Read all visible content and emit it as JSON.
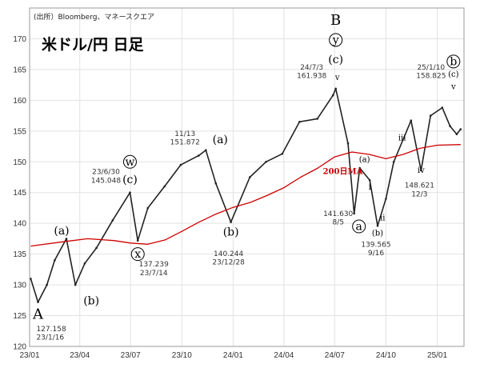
{
  "chart_data": {
    "type": "line",
    "title": "米ドル/円 日足",
    "source": "(出所）Bloomberg、マネースクエア",
    "ylim": [
      120,
      175
    ],
    "y_ticks": [
      120,
      125,
      130,
      135,
      140,
      145,
      150,
      155,
      160,
      165,
      170
    ],
    "x_ticks": [
      "23/01",
      "23/04",
      "23/07",
      "23/10",
      "24/01",
      "24/04",
      "24/07",
      "24/10",
      "25/01"
    ],
    "grid": true,
    "series": [
      {
        "name": "price",
        "color": "#222222",
        "points": [
          [
            "2023-01-03",
            131.0
          ],
          [
            "2023-01-16",
            127.2
          ],
          [
            "2023-02-01",
            130.0
          ],
          [
            "2023-02-15",
            134.0
          ],
          [
            "2023-03-08",
            137.5
          ],
          [
            "2023-03-24",
            130.0
          ],
          [
            "2023-04-10",
            133.5
          ],
          [
            "2023-05-01",
            136.0
          ],
          [
            "2023-05-30",
            140.5
          ],
          [
            "2023-06-30",
            145.0
          ],
          [
            "2023-07-14",
            137.2
          ],
          [
            "2023-08-01",
            142.5
          ],
          [
            "2023-08-31",
            146.0
          ],
          [
            "2023-09-29",
            149.5
          ],
          [
            "2023-10-31",
            151.0
          ],
          [
            "2023-11-13",
            151.9
          ],
          [
            "2023-12-01",
            146.5
          ],
          [
            "2023-12-28",
            140.2
          ],
          [
            "2024-01-31",
            147.5
          ],
          [
            "2024-02-29",
            150.0
          ],
          [
            "2024-03-29",
            151.3
          ],
          [
            "2024-04-29",
            156.5
          ],
          [
            "2024-05-31",
            157.0
          ],
          [
            "2024-06-28",
            160.8
          ],
          [
            "2024-07-03",
            161.9
          ],
          [
            "2024-07-25",
            153.0
          ],
          [
            "2024-08-05",
            141.6
          ],
          [
            "2024-08-15",
            149.0
          ],
          [
            "2024-09-02",
            147.0
          ],
          [
            "2024-09-16",
            139.6
          ],
          [
            "2024-10-01",
            144.0
          ],
          [
            "2024-10-15",
            150.0
          ],
          [
            "2024-11-15",
            156.7
          ],
          [
            "2024-12-03",
            148.6
          ],
          [
            "2024-12-20",
            157.5
          ],
          [
            "2025-01-10",
            158.8
          ],
          [
            "2025-01-24",
            155.8
          ],
          [
            "2025-02-05",
            154.5
          ],
          [
            "2025-02-12",
            155.3
          ]
        ]
      },
      {
        "name": "200日MA",
        "color": "#cc0000",
        "points": [
          [
            "2023-01-03",
            136.3
          ],
          [
            "2023-03-01",
            137.0
          ],
          [
            "2023-04-15",
            137.5
          ],
          [
            "2023-06-01",
            137.2
          ],
          [
            "2023-07-01",
            136.8
          ],
          [
            "2023-08-01",
            136.6
          ],
          [
            "2023-09-01",
            137.3
          ],
          [
            "2023-10-01",
            138.7
          ],
          [
            "2023-11-01",
            140.2
          ],
          [
            "2023-12-01",
            141.5
          ],
          [
            "2024-01-01",
            142.6
          ],
          [
            "2024-02-01",
            143.4
          ],
          [
            "2024-03-01",
            144.5
          ],
          [
            "2024-04-01",
            145.8
          ],
          [
            "2024-05-01",
            147.5
          ],
          [
            "2024-06-01",
            149.0
          ],
          [
            "2024-07-01",
            150.8
          ],
          [
            "2024-08-01",
            151.6
          ],
          [
            "2024-09-01",
            151.2
          ],
          [
            "2024-10-01",
            150.5
          ],
          [
            "2024-11-01",
            151.2
          ],
          [
            "2024-12-01",
            152.2
          ],
          [
            "2025-01-01",
            152.7
          ],
          [
            "2025-02-12",
            152.8
          ]
        ]
      }
    ],
    "ma_label": "200日MA",
    "annotations": [
      {
        "date": "2023-01-16",
        "value": 127.158,
        "label_date": "23/1/16",
        "label_value": "127.158",
        "wave": "A"
      },
      {
        "date": "2023-03-08",
        "value": 137.5,
        "wave": "(a)"
      },
      {
        "date": "2023-03-24",
        "value": 130.0,
        "wave": "(b)"
      },
      {
        "date": "2023-06-30",
        "value": 145.048,
        "label_date": "23/6/30",
        "label_value": "145.048",
        "wave": "(c)",
        "circled": "w"
      },
      {
        "date": "2023-07-14",
        "value": 137.239,
        "label_date": "23/7/14",
        "label_value": "137.239",
        "circled": "x"
      },
      {
        "date": "2023-11-13",
        "value": 151.872,
        "label_date": "11/13",
        "label_value": "151.872",
        "wave": "(a)"
      },
      {
        "date": "2023-12-28",
        "value": 140.244,
        "label_date": "23/12/28",
        "label_value": "140.244",
        "wave": "(b)"
      },
      {
        "date": "2024-07-03",
        "value": 161.938,
        "label_date": "24/7/3",
        "label_value": "161.938",
        "wave": "(c)",
        "wave_top": "B",
        "circled": "y",
        "small": "v"
      },
      {
        "date": "2024-08-05",
        "value": 141.63,
        "label_date": "8/5",
        "label_value": "141.630",
        "circled": "a"
      },
      {
        "date": "2024-08-15",
        "value": 149.0,
        "wave": "(a)"
      },
      {
        "date": "2024-09-02",
        "value": 145.5,
        "small": "i"
      },
      {
        "date": "2024-09-16",
        "value": 139.565,
        "label_date": "9/16",
        "label_value": "139.565",
        "wave": "(b)"
      },
      {
        "date": "2024-09-25",
        "value": 140.5,
        "small": "ii"
      },
      {
        "date": "2024-10-30",
        "value": 153.5,
        "small": "iii"
      },
      {
        "date": "2024-12-03",
        "value": 148.621,
        "label_date": "12/3",
        "label_value": "148.621",
        "small": "iv"
      },
      {
        "date": "2025-01-10",
        "value": 158.825,
        "label_date": "25/1/10",
        "label_value": "158.825",
        "wave": "(c)",
        "circled": "b",
        "small": "v"
      }
    ]
  }
}
